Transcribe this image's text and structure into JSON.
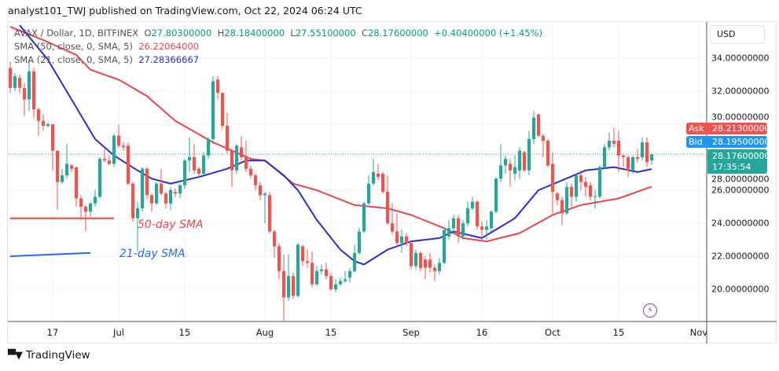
{
  "header": {
    "text": "analyst101_TWJ published on TradingView.com, Oct 22, 2024 06:24 UTC"
  },
  "legend": {
    "symbol": "AVAX / Dollar, 1D, BITFINEX",
    "o_label": "O",
    "o": "27.80300000",
    "h_label": "H",
    "h": "28.18400000",
    "l_label": "L",
    "l": "27.55100000",
    "c_label": "C",
    "c": "28.17600000",
    "change": "+0.40400000 (+1.45%)",
    "sma50_label": "SMA (50, close, 0, SMA, 5)",
    "sma50_value": "26.22064000",
    "sma21_label": "SMA (21, close, 0, SMA, 5)",
    "sma21_value": "27.28366667"
  },
  "price_axis": {
    "currency": "USD",
    "ask_label": "Ask",
    "ask": "28.21300000",
    "bid_label": "Bid",
    "bid": "28.19500000",
    "last": "28.17600000",
    "countdown": "17:35:54"
  },
  "annotations": {
    "sma50_text": "50-day SMA",
    "sma21_text": "21-day SMA"
  },
  "footer": {
    "brand": "TradingView",
    "logo": "TV"
  },
  "colors": {
    "up": "#26a69a",
    "down": "#ef5350",
    "sma50": "#e5474d",
    "sma21": "#2b2fc8",
    "grid": "#eef1f5",
    "ask": "#ef5350",
    "bid": "#2196f3",
    "alert": "#8e44ad"
  },
  "icons": {
    "alert": "lightning-bolt-icon"
  },
  "chart_data": {
    "type": "candlestick",
    "title": "AVAX / Dollar, 1D, BITFINEX",
    "ylim": [
      18,
      36
    ],
    "grid": true,
    "y_ticks": [
      "34.00000000",
      "32.00000000",
      "30.00000000",
      "28.00000000",
      "26.00000000",
      "24.00000000",
      "22.00000000",
      "20.00000000"
    ],
    "y_tick_values": [
      34,
      32,
      30,
      28,
      26,
      24,
      22,
      20
    ],
    "x_ticks": [
      {
        "label": "17",
        "date": "2024-06-17"
      },
      {
        "label": "Jul",
        "date": "2024-07-01"
      },
      {
        "label": "15",
        "date": "2024-07-15"
      },
      {
        "label": "Aug",
        "date": "2024-08-01"
      },
      {
        "label": "15",
        "date": "2024-08-15"
      },
      {
        "label": "Sep",
        "date": "2024-09-01"
      },
      {
        "label": "16",
        "date": "2024-09-16"
      },
      {
        "label": "Oct",
        "date": "2024-10-01"
      },
      {
        "label": "15",
        "date": "2024-10-15"
      },
      {
        "label": "Nov",
        "date": "2024-11-01"
      }
    ],
    "candle_fields": [
      "date",
      "open",
      "high",
      "low",
      "close"
    ],
    "candles": [
      [
        "2024-06-08",
        33.4,
        33.8,
        31.9,
        32.2
      ],
      [
        "2024-06-09",
        32.2,
        33.1,
        32.0,
        32.9
      ],
      [
        "2024-06-10",
        32.8,
        33.0,
        31.9,
        32.2
      ],
      [
        "2024-06-11",
        32.2,
        32.5,
        30.5,
        31.5
      ],
      [
        "2024-06-12",
        31.5,
        33.9,
        30.8,
        33.2
      ],
      [
        "2024-06-13",
        33.2,
        33.4,
        30.4,
        30.9
      ],
      [
        "2024-06-14",
        30.9,
        31.0,
        29.3,
        30.2
      ],
      [
        "2024-06-15",
        30.2,
        30.6,
        29.6,
        29.9
      ],
      [
        "2024-06-16",
        29.9,
        30.1,
        29.8,
        30.0
      ],
      [
        "2024-06-17",
        30.0,
        30.0,
        27.2,
        28.4
      ],
      [
        "2024-06-18",
        28.4,
        28.4,
        24.8,
        26.5
      ],
      [
        "2024-06-19",
        26.5,
        27.3,
        26.4,
        26.9
      ],
      [
        "2024-06-20",
        26.9,
        28.8,
        26.7,
        27.6
      ],
      [
        "2024-06-21",
        27.5,
        27.6,
        27.1,
        27.3
      ],
      [
        "2024-06-22",
        27.4,
        27.4,
        25.0,
        25.5
      ],
      [
        "2024-06-23",
        25.5,
        25.7,
        24.2,
        25.0
      ],
      [
        "2024-06-24",
        25.0,
        25.1,
        23.5,
        24.7
      ],
      [
        "2024-06-25",
        24.7,
        25.3,
        24.4,
        25.2
      ],
      [
        "2024-06-26",
        25.2,
        26.0,
        25.0,
        25.6
      ],
      [
        "2024-06-27",
        25.6,
        28.0,
        25.5,
        27.9
      ],
      [
        "2024-06-28",
        27.9,
        28.5,
        27.7,
        27.8
      ],
      [
        "2024-06-29",
        27.8,
        28.1,
        27.5,
        27.6
      ],
      [
        "2024-06-30",
        27.6,
        29.4,
        27.4,
        29.3
      ],
      [
        "2024-07-01",
        29.3,
        30.0,
        28.6,
        28.7
      ],
      [
        "2024-07-02",
        28.7,
        28.9,
        28.4,
        28.6
      ],
      [
        "2024-07-03",
        28.7,
        28.9,
        26.3,
        26.4
      ],
      [
        "2024-07-04",
        26.4,
        26.5,
        24.1,
        24.3
      ],
      [
        "2024-07-05",
        24.3,
        25.3,
        22.3,
        24.9
      ],
      [
        "2024-07-06",
        24.9,
        27.4,
        24.7,
        27.3
      ],
      [
        "2024-07-07",
        27.3,
        27.4,
        25.5,
        25.7
      ],
      [
        "2024-07-08",
        25.7,
        25.8,
        24.7,
        25.2
      ],
      [
        "2024-07-09",
        25.2,
        26.5,
        25.1,
        26.4
      ],
      [
        "2024-07-10",
        26.4,
        27.3,
        25.7,
        25.8
      ],
      [
        "2024-07-11",
        25.8,
        25.9,
        24.9,
        25.2
      ],
      [
        "2024-07-12",
        25.2,
        26.2,
        24.8,
        26.0
      ],
      [
        "2024-07-13",
        25.9,
        26.1,
        25.6,
        25.8
      ],
      [
        "2024-07-14",
        25.8,
        26.4,
        25.5,
        26.3
      ],
      [
        "2024-07-15",
        26.3,
        27.9,
        26.1,
        27.8
      ],
      [
        "2024-07-16",
        27.8,
        29.2,
        27.1,
        28.0
      ],
      [
        "2024-07-17",
        28.0,
        28.8,
        27.0,
        27.2
      ],
      [
        "2024-07-18",
        27.3,
        27.4,
        26.8,
        27.0
      ],
      [
        "2024-07-19",
        27.0,
        28.3,
        26.9,
        28.1
      ],
      [
        "2024-07-20",
        28.1,
        29.2,
        27.9,
        29.1
      ],
      [
        "2024-07-21",
        29.1,
        32.9,
        28.8,
        32.6
      ],
      [
        "2024-07-22",
        32.7,
        32.9,
        31.5,
        31.9
      ],
      [
        "2024-07-23",
        31.9,
        31.9,
        29.7,
        29.9
      ],
      [
        "2024-07-24",
        29.9,
        30.7,
        28.2,
        28.4
      ],
      [
        "2024-07-25",
        28.4,
        28.5,
        26.2,
        27.2
      ],
      [
        "2024-07-26",
        27.2,
        28.8,
        27.0,
        28.7
      ],
      [
        "2024-07-27",
        28.6,
        29.3,
        27.8,
        28.0
      ],
      [
        "2024-07-28",
        28.0,
        29.0,
        27.1,
        27.3
      ],
      [
        "2024-07-29",
        27.3,
        27.5,
        26.7,
        26.9
      ],
      [
        "2024-07-30",
        26.9,
        27.0,
        26.0,
        26.3
      ],
      [
        "2024-07-31",
        26.3,
        26.5,
        25.4,
        25.7
      ],
      [
        "2024-08-01",
        25.7,
        25.9,
        24.0,
        25.8
      ],
      [
        "2024-08-02",
        25.7,
        25.9,
        23.4,
        23.5
      ],
      [
        "2024-08-03",
        23.5,
        23.6,
        21.9,
        22.6
      ],
      [
        "2024-08-04",
        22.6,
        22.8,
        20.6,
        21.1
      ],
      [
        "2024-08-05",
        21.1,
        22.1,
        18.1,
        19.5
      ],
      [
        "2024-08-06",
        19.5,
        22.1,
        19.3,
        20.8
      ],
      [
        "2024-08-07",
        20.8,
        21.0,
        19.4,
        19.6
      ],
      [
        "2024-08-08",
        19.6,
        22.8,
        19.5,
        22.7
      ],
      [
        "2024-08-09",
        22.6,
        22.7,
        21.4,
        21.7
      ],
      [
        "2024-08-10",
        21.7,
        22.4,
        21.3,
        21.6
      ],
      [
        "2024-08-11",
        21.6,
        22.3,
        20.1,
        20.3
      ],
      [
        "2024-08-12",
        20.3,
        21.4,
        20.2,
        21.1
      ],
      [
        "2024-08-13",
        21.1,
        21.5,
        20.9,
        21.2
      ],
      [
        "2024-08-14",
        21.2,
        21.6,
        20.6,
        20.8
      ],
      [
        "2024-08-15",
        20.8,
        21.0,
        19.9,
        20.0
      ],
      [
        "2024-08-16",
        20.0,
        20.6,
        19.8,
        20.3
      ],
      [
        "2024-08-17",
        20.3,
        20.7,
        20.2,
        20.5
      ],
      [
        "2024-08-18",
        20.5,
        21.1,
        20.4,
        20.6
      ],
      [
        "2024-08-19",
        20.7,
        21.3,
        20.4,
        21.1
      ],
      [
        "2024-08-20",
        21.1,
        22.7,
        21.0,
        22.2
      ],
      [
        "2024-08-21",
        22.2,
        23.7,
        22.1,
        23.5
      ],
      [
        "2024-08-22",
        23.5,
        25.3,
        23.4,
        25.2
      ],
      [
        "2024-08-23",
        25.2,
        26.9,
        25.1,
        26.4
      ],
      [
        "2024-08-24",
        26.4,
        27.9,
        26.3,
        27.1
      ],
      [
        "2024-08-25",
        27.0,
        27.6,
        26.6,
        26.8
      ],
      [
        "2024-08-26",
        27.0,
        27.1,
        25.8,
        25.9
      ],
      [
        "2024-08-27",
        25.9,
        26.9,
        23.9,
        24.0
      ],
      [
        "2024-08-28",
        24.0,
        25.2,
        23.3,
        23.5
      ],
      [
        "2024-08-29",
        23.5,
        24.6,
        22.6,
        22.8
      ],
      [
        "2024-08-30",
        22.8,
        23.6,
        22.2,
        23.2
      ],
      [
        "2024-08-31",
        23.2,
        23.4,
        22.6,
        22.8
      ],
      [
        "2024-09-01",
        22.8,
        22.9,
        21.2,
        21.4
      ],
      [
        "2024-09-02",
        21.4,
        22.4,
        21.2,
        22.2
      ],
      [
        "2024-09-03",
        22.2,
        22.3,
        21.1,
        21.3
      ],
      [
        "2024-09-04",
        21.8,
        22.0,
        20.6,
        21.3
      ],
      [
        "2024-09-05",
        21.8,
        22.2,
        21.0,
        21.3
      ],
      [
        "2024-09-06",
        21.3,
        21.5,
        20.5,
        21.1
      ],
      [
        "2024-09-07",
        21.1,
        21.9,
        20.9,
        21.6
      ],
      [
        "2024-09-08",
        21.6,
        23.6,
        21.5,
        23.6
      ],
      [
        "2024-09-09",
        23.2,
        24.2,
        23.0,
        23.7
      ],
      [
        "2024-09-10",
        23.7,
        24.5,
        23.4,
        24.3
      ],
      [
        "2024-09-11",
        24.3,
        24.5,
        22.8,
        23.2
      ],
      [
        "2024-09-12",
        23.2,
        24.2,
        23.0,
        24.0
      ],
      [
        "2024-09-13",
        24.0,
        25.3,
        23.8,
        24.9
      ],
      [
        "2024-09-14",
        24.9,
        25.6,
        24.8,
        25.3
      ],
      [
        "2024-09-15",
        25.3,
        25.4,
        23.6,
        23.8
      ],
      [
        "2024-09-16",
        23.8,
        24.1,
        23.0,
        23.6
      ],
      [
        "2024-09-17",
        23.6,
        24.2,
        23.0,
        23.8
      ],
      [
        "2024-09-18",
        23.7,
        24.8,
        23.5,
        24.7
      ],
      [
        "2024-09-19",
        24.7,
        26.8,
        24.6,
        26.7
      ],
      [
        "2024-09-20",
        26.7,
        28.8,
        26.5,
        27.5
      ],
      [
        "2024-09-21",
        27.5,
        28.1,
        27.0,
        27.9
      ],
      [
        "2024-09-22",
        27.6,
        27.9,
        26.2,
        27.2
      ],
      [
        "2024-09-23",
        27.0,
        28.1,
        26.6,
        27.4
      ],
      [
        "2024-09-24",
        27.2,
        28.6,
        26.7,
        28.4
      ],
      [
        "2024-09-25",
        28.3,
        28.4,
        27.1,
        27.2
      ],
      [
        "2024-09-26",
        27.2,
        29.6,
        26.9,
        29.1
      ],
      [
        "2024-09-27",
        29.1,
        30.8,
        28.8,
        30.4
      ],
      [
        "2024-09-28",
        30.6,
        30.6,
        29.2,
        29.3
      ],
      [
        "2024-09-29",
        29.3,
        29.4,
        28.0,
        29.0
      ],
      [
        "2024-09-30",
        29.0,
        29.1,
        27.4,
        27.5
      ],
      [
        "2024-10-01",
        27.6,
        28.3,
        24.6,
        25.9
      ],
      [
        "2024-10-02",
        25.8,
        25.9,
        25.1,
        25.4
      ],
      [
        "2024-10-03",
        25.4,
        25.6,
        23.9,
        24.6
      ],
      [
        "2024-10-04",
        24.6,
        26.5,
        24.5,
        26.2
      ],
      [
        "2024-10-05",
        26.2,
        26.4,
        25.0,
        25.6
      ],
      [
        "2024-10-06",
        25.6,
        27.0,
        25.3,
        26.9
      ],
      [
        "2024-10-07",
        26.9,
        27.2,
        26.0,
        26.5
      ],
      [
        "2024-10-08",
        26.5,
        26.8,
        25.6,
        26.2
      ],
      [
        "2024-10-09",
        26.3,
        26.5,
        25.4,
        25.6
      ],
      [
        "2024-10-10",
        25.6,
        26.0,
        24.9,
        25.65
      ],
      [
        "2024-10-11",
        25.6,
        27.5,
        25.5,
        27.4
      ],
      [
        "2024-10-12",
        27.4,
        28.8,
        27.3,
        28.6
      ],
      [
        "2024-10-13",
        28.6,
        29.5,
        28.4,
        29.0
      ],
      [
        "2024-10-14",
        29.0,
        29.8,
        28.6,
        28.8
      ],
      [
        "2024-10-15",
        29.0,
        29.6,
        27.1,
        28.1
      ],
      [
        "2024-10-16",
        28.1,
        28.2,
        27.4,
        28.0
      ],
      [
        "2024-10-17",
        28.0,
        28.1,
        26.8,
        27.2
      ],
      [
        "2024-10-18",
        27.2,
        28.1,
        27.0,
        28.0
      ],
      [
        "2024-10-19",
        28.0,
        28.5,
        27.7,
        27.9
      ],
      [
        "2024-10-20",
        28.0,
        29.2,
        27.8,
        28.9
      ],
      [
        "2024-10-21",
        28.9,
        29.2,
        27.4,
        27.7
      ],
      [
        "2024-10-22",
        27.803,
        28.184,
        27.551,
        28.176
      ]
    ],
    "series": [
      {
        "name": "SMA (50, close, 0, SMA, 5)",
        "type": "line",
        "points": [
          [
            "2024-06-08",
            35.9
          ],
          [
            "2024-06-15",
            35.1
          ],
          [
            "2024-06-22",
            34.2
          ],
          [
            "2024-06-25",
            33.3
          ],
          [
            "2024-07-01",
            32.7
          ],
          [
            "2024-07-07",
            31.7
          ],
          [
            "2024-07-13",
            30.2
          ],
          [
            "2024-07-21",
            28.9
          ],
          [
            "2024-07-29",
            27.9
          ],
          [
            "2024-08-01",
            27.8
          ],
          [
            "2024-08-07",
            26.4
          ],
          [
            "2024-08-12",
            26.0
          ],
          [
            "2024-08-20",
            25.1
          ],
          [
            "2024-08-27",
            24.9
          ],
          [
            "2024-09-01",
            24.5
          ],
          [
            "2024-09-08",
            23.7
          ],
          [
            "2024-09-12",
            23.1
          ],
          [
            "2024-09-17",
            22.9
          ],
          [
            "2024-09-24",
            23.4
          ],
          [
            "2024-10-01",
            24.5
          ],
          [
            "2024-10-07",
            25.1
          ],
          [
            "2024-10-15",
            25.5
          ],
          [
            "2024-10-22",
            26.22
          ]
        ]
      },
      {
        "name": "SMA (21, close, 0, SMA, 5)",
        "type": "line",
        "points": [
          [
            "2024-06-10",
            36.0
          ],
          [
            "2024-06-16",
            33.9
          ],
          [
            "2024-06-21",
            31.5
          ],
          [
            "2024-06-26",
            29.1
          ],
          [
            "2024-06-30",
            28.1
          ],
          [
            "2024-07-05",
            27.2
          ],
          [
            "2024-07-08",
            26.7
          ],
          [
            "2024-07-12",
            26.4
          ],
          [
            "2024-07-18",
            26.8
          ],
          [
            "2024-07-24",
            27.3
          ],
          [
            "2024-07-28",
            27.8
          ],
          [
            "2024-08-01",
            27.8
          ],
          [
            "2024-08-05",
            26.9
          ],
          [
            "2024-08-08",
            26.0
          ],
          [
            "2024-08-12",
            24.2
          ],
          [
            "2024-08-17",
            22.4
          ],
          [
            "2024-08-20",
            21.7
          ],
          [
            "2024-08-22",
            21.5
          ],
          [
            "2024-08-27",
            22.4
          ],
          [
            "2024-09-01",
            22.9
          ],
          [
            "2024-09-07",
            23.1
          ],
          [
            "2024-09-10",
            23.5
          ],
          [
            "2024-09-16",
            23.1
          ],
          [
            "2024-09-23",
            24.3
          ],
          [
            "2024-09-28",
            26.0
          ],
          [
            "2024-10-03",
            26.6
          ],
          [
            "2024-10-08",
            27.2
          ],
          [
            "2024-10-14",
            27.4
          ],
          [
            "2024-10-19",
            27.1
          ],
          [
            "2024-10-22",
            27.28
          ]
        ]
      }
    ],
    "drawn_lines": [
      {
        "color": "sma50",
        "points": [
          [
            "2024-06-08",
            24.3
          ],
          [
            "2024-06-30",
            24.3
          ]
        ]
      },
      {
        "color": "sma21",
        "points": [
          [
            "2024-06-08",
            22.0
          ],
          [
            "2024-06-25",
            22.2
          ]
        ]
      }
    ],
    "last_price_line": 28.176
  }
}
